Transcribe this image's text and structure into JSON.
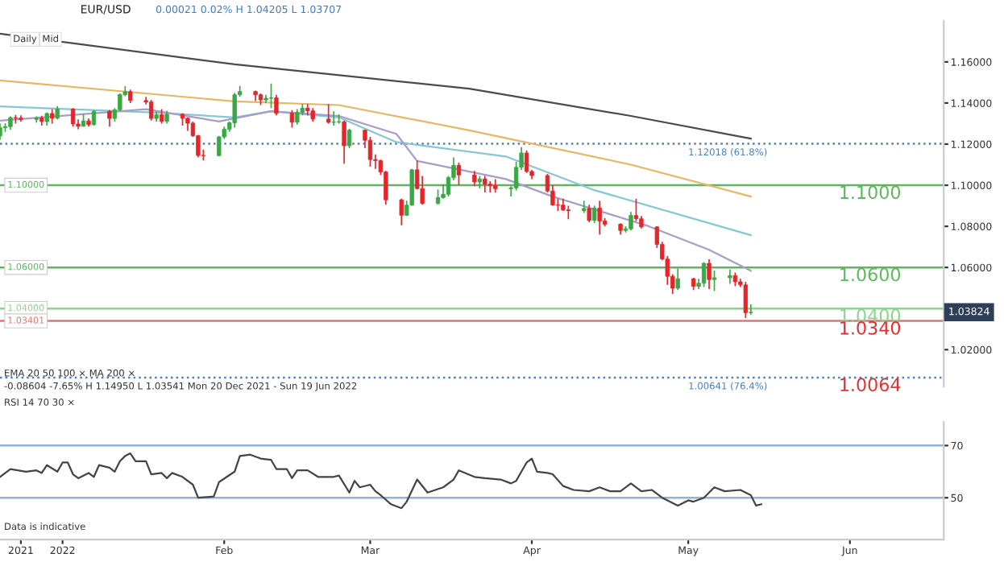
{
  "chart_data": [
    {
      "type": "candlestick",
      "title": "EUR/USD",
      "subtitle": "0.00021 0.02% H 1.04205 L 1.03707",
      "x": [
        "2021-12-20",
        "2021-12-21",
        "2021-12-22",
        "2021-12-23",
        "2021-12-24",
        "2021-12-27",
        "2021-12-28",
        "2021-12-29",
        "2021-12-30",
        "2021-12-31",
        "2022-01-03",
        "2022-01-04",
        "2022-01-05",
        "2022-01-06",
        "2022-01-07",
        "2022-01-10",
        "2022-01-11",
        "2022-01-12",
        "2022-01-13",
        "2022-01-14",
        "2022-01-17",
        "2022-01-18",
        "2022-01-19",
        "2022-01-20",
        "2022-01-21",
        "2022-01-24",
        "2022-01-25",
        "2022-01-26",
        "2022-01-27",
        "2022-01-28",
        "2022-01-31",
        "2022-02-01",
        "2022-02-02",
        "2022-02-03",
        "2022-02-04",
        "2022-02-07",
        "2022-02-08",
        "2022-02-09",
        "2022-02-10",
        "2022-02-11",
        "2022-02-14",
        "2022-02-15",
        "2022-02-16",
        "2022-02-17",
        "2022-02-18",
        "2022-02-21",
        "2022-02-22",
        "2022-02-23",
        "2022-02-24",
        "2022-02-25",
        "2022-02-28",
        "2022-03-01",
        "2022-03-02",
        "2022-03-03",
        "2022-03-04",
        "2022-03-07",
        "2022-03-08",
        "2022-03-09",
        "2022-03-10",
        "2022-03-11",
        "2022-03-14",
        "2022-03-15",
        "2022-03-16",
        "2022-03-17",
        "2022-03-18",
        "2022-03-21",
        "2022-03-22",
        "2022-03-23",
        "2022-03-24",
        "2022-03-25",
        "2022-03-28",
        "2022-03-29",
        "2022-03-30",
        "2022-03-31",
        "2022-04-01",
        "2022-04-04",
        "2022-04-05",
        "2022-04-06",
        "2022-04-07",
        "2022-04-08",
        "2022-04-11",
        "2022-04-12",
        "2022-04-13",
        "2022-04-14",
        "2022-04-15",
        "2022-04-18",
        "2022-04-19",
        "2022-04-20",
        "2022-04-21",
        "2022-04-22",
        "2022-04-25",
        "2022-04-26",
        "2022-04-27",
        "2022-04-28",
        "2022-04-29",
        "2022-05-02",
        "2022-05-03",
        "2022-05-04",
        "2022-05-05",
        "2022-05-06",
        "2022-05-09",
        "2022-05-10",
        "2022-05-11",
        "2022-05-12",
        "2022-05-13"
      ],
      "ohlc": [
        [
          1.124,
          1.13,
          1.1222,
          1.128
        ],
        [
          1.128,
          1.1302,
          1.126,
          1.1285
        ],
        [
          1.1285,
          1.1335,
          1.127,
          1.1329
        ],
        [
          1.1329,
          1.1342,
          1.13,
          1.1327
        ],
        [
          1.1327,
          1.134,
          1.131,
          1.132
        ],
        [
          1.132,
          1.1335,
          1.1305,
          1.1327
        ],
        [
          1.1327,
          1.1338,
          1.129,
          1.131
        ],
        [
          1.131,
          1.1355,
          1.129,
          1.1349
        ],
        [
          1.1349,
          1.137,
          1.13,
          1.1326
        ],
        [
          1.1326,
          1.1385,
          1.132,
          1.137
        ],
        [
          1.137,
          1.1375,
          1.1285,
          1.1298
        ],
        [
          1.1298,
          1.132,
          1.1272,
          1.1287
        ],
        [
          1.1287,
          1.1346,
          1.1285,
          1.1313
        ],
        [
          1.1313,
          1.1325,
          1.1285,
          1.1295
        ],
        [
          1.1295,
          1.1365,
          1.129,
          1.136
        ],
        [
          1.136,
          1.1365,
          1.1285,
          1.1325
        ],
        [
          1.1325,
          1.1375,
          1.131,
          1.1367
        ],
        [
          1.1367,
          1.1447,
          1.136,
          1.1441
        ],
        [
          1.1441,
          1.1482,
          1.1433,
          1.1455
        ],
        [
          1.1455,
          1.1465,
          1.14,
          1.1412
        ],
        [
          1.1412,
          1.143,
          1.1393,
          1.1405
        ],
        [
          1.1405,
          1.1415,
          1.1315,
          1.1325
        ],
        [
          1.1325,
          1.1358,
          1.131,
          1.1343
        ],
        [
          1.1343,
          1.137,
          1.13,
          1.1311
        ],
        [
          1.1311,
          1.1363,
          1.13,
          1.1345
        ],
        [
          1.1345,
          1.135,
          1.129,
          1.1326
        ],
        [
          1.1326,
          1.133,
          1.1265,
          1.1302
        ],
        [
          1.1302,
          1.131,
          1.1235,
          1.1241
        ],
        [
          1.1241,
          1.1245,
          1.1135,
          1.1145
        ],
        [
          1.1145,
          1.1174,
          1.1121,
          1.1144
        ],
        [
          1.1144,
          1.124,
          1.114,
          1.1235
        ],
        [
          1.1235,
          1.1285,
          1.1225,
          1.1272
        ],
        [
          1.1272,
          1.131,
          1.126,
          1.1304
        ],
        [
          1.1304,
          1.145,
          1.128,
          1.144
        ],
        [
          1.144,
          1.1483,
          1.143,
          1.1456
        ],
        [
          1.1456,
          1.146,
          1.141,
          1.144
        ],
        [
          1.144,
          1.1447,
          1.139,
          1.1415
        ],
        [
          1.1415,
          1.144,
          1.14,
          1.1423
        ],
        [
          1.1423,
          1.1495,
          1.1375,
          1.1425
        ],
        [
          1.1425,
          1.144,
          1.134,
          1.135
        ],
        [
          1.135,
          1.1365,
          1.128,
          1.1307
        ],
        [
          1.1307,
          1.137,
          1.1295,
          1.1355
        ],
        [
          1.1355,
          1.1395,
          1.134,
          1.1375
        ],
        [
          1.1375,
          1.1395,
          1.134,
          1.1362
        ],
        [
          1.1362,
          1.1375,
          1.131,
          1.1322
        ],
        [
          1.1322,
          1.1395,
          1.13,
          1.1306
        ],
        [
          1.1306,
          1.136,
          1.129,
          1.1307
        ],
        [
          1.1307,
          1.1345,
          1.13,
          1.1309
        ],
        [
          1.1309,
          1.1315,
          1.1105,
          1.1192
        ],
        [
          1.1192,
          1.1275,
          1.118,
          1.1268
        ],
        [
          1.1268,
          1.127,
          1.118,
          1.1219
        ],
        [
          1.1219,
          1.1235,
          1.109,
          1.1125
        ],
        [
          1.1125,
          1.115,
          1.108,
          1.112
        ],
        [
          1.112,
          1.1125,
          1.105,
          1.1065
        ],
        [
          1.1065,
          1.107,
          1.0905,
          1.0929
        ],
        [
          1.0929,
          1.0935,
          1.0805,
          1.0854
        ],
        [
          1.0854,
          1.0925,
          1.085,
          1.0903
        ],
        [
          1.0903,
          1.108,
          1.09,
          1.1075
        ],
        [
          1.1075,
          1.112,
          1.098,
          1.0984
        ],
        [
          1.0984,
          1.1045,
          1.0905,
          1.0912
        ],
        [
          1.0912,
          1.098,
          1.0905,
          1.094
        ],
        [
          1.094,
          1.1005,
          1.0935,
          1.0956
        ],
        [
          1.0956,
          1.1045,
          1.0945,
          1.1037
        ],
        [
          1.1037,
          1.1135,
          1.1025,
          1.1097
        ],
        [
          1.1097,
          1.111,
          1.1,
          1.105
        ],
        [
          1.105,
          1.107,
          1.0995,
          1.1016
        ],
        [
          1.1016,
          1.1045,
          1.0985,
          1.1031
        ],
        [
          1.1031,
          1.1045,
          1.0965,
          1.1005
        ],
        [
          1.1005,
          1.102,
          1.0965,
          1.0998
        ],
        [
          1.0998,
          1.103,
          1.0965,
          1.0983
        ],
        [
          1.0983,
          1.0995,
          1.0945,
          1.0987
        ],
        [
          1.0987,
          1.1115,
          1.0975,
          1.1087
        ],
        [
          1.1087,
          1.1185,
          1.1075,
          1.1157
        ],
        [
          1.1157,
          1.117,
          1.106,
          1.1067
        ],
        [
          1.1067,
          1.1075,
          1.103,
          1.1047
        ],
        [
          1.1047,
          1.1055,
          1.0965,
          1.0972
        ],
        [
          1.0972,
          1.1,
          1.09,
          1.0904
        ],
        [
          1.0904,
          1.0935,
          1.0875,
          1.0903
        ],
        [
          1.0903,
          1.0935,
          1.0875,
          1.088
        ],
        [
          1.088,
          1.09,
          1.0835,
          1.0876
        ],
        [
          1.0876,
          1.0925,
          1.0865,
          1.0887
        ],
        [
          1.0887,
          1.0905,
          1.082,
          1.0829
        ],
        [
          1.0829,
          1.09,
          1.0815,
          1.0889
        ],
        [
          1.0889,
          1.0925,
          1.076,
          1.0826
        ],
        [
          1.0826,
          1.084,
          1.08,
          1.081
        ],
        [
          1.081,
          1.0815,
          1.076,
          1.078
        ],
        [
          1.078,
          1.08,
          1.077,
          1.0788
        ],
        [
          1.0788,
          1.087,
          1.078,
          1.0853
        ],
        [
          1.0853,
          1.0935,
          1.0825,
          1.0837
        ],
        [
          1.0837,
          1.085,
          1.079,
          1.0797
        ],
        [
          1.0797,
          1.08,
          1.0695,
          1.0712
        ],
        [
          1.0712,
          1.0725,
          1.0635,
          1.0641
        ],
        [
          1.0641,
          1.0655,
          1.0515,
          1.0557
        ],
        [
          1.0557,
          1.0567,
          1.0471,
          1.0499
        ],
        [
          1.0499,
          1.0595,
          1.049,
          1.0545
        ],
        [
          1.0545,
          1.055,
          1.049,
          1.0508
        ],
        [
          1.0508,
          1.0545,
          1.0495,
          1.0523
        ],
        [
          1.0523,
          1.0625,
          1.0505,
          1.062
        ],
        [
          1.062,
          1.064,
          1.0495,
          1.0541
        ],
        [
          1.0541,
          1.0585,
          1.0485,
          1.055
        ],
        [
          1.055,
          1.059,
          1.052,
          1.056
        ],
        [
          1.056,
          1.0575,
          1.051,
          1.053
        ],
        [
          1.053,
          1.0545,
          1.0505,
          1.0515
        ],
        [
          1.0515,
          1.053,
          1.0354,
          1.038
        ],
        [
          1.03803,
          1.04205,
          1.03707,
          1.03824
        ]
      ],
      "series": [
        {
          "type": "line",
          "color": "#4a4a52",
          "x": [
            "2021-12-20",
            "2022-02-03",
            "2022-03-20",
            "2022-04-20",
            "2022-05-13"
          ],
          "values": [
            1.1737,
            1.1588,
            1.147,
            1.1337,
            1.1227
          ]
        },
        {
          "type": "line",
          "color": "#e6b765",
          "x": [
            "2021-12-20",
            "2022-02-03",
            "2022-02-23",
            "2022-03-20",
            "2022-04-20",
            "2022-05-13"
          ],
          "values": [
            1.151,
            1.1408,
            1.139,
            1.1267,
            1.11,
            1.0945
          ]
        },
        {
          "type": "line",
          "color": "#86c7d6",
          "x": [
            "2021-12-20",
            "2022-01-19",
            "2022-02-03",
            "2022-02-10",
            "2022-02-23",
            "2022-03-06",
            "2022-03-27",
            "2022-04-13",
            "2022-05-13"
          ],
          "values": [
            1.1384,
            1.1353,
            1.133,
            1.136,
            1.133,
            1.121,
            1.114,
            1.0976,
            1.0757
          ]
        },
        {
          "type": "line",
          "color": "#a89cc8",
          "x": [
            "2021-12-20",
            "2022-01-17",
            "2022-01-31",
            "2022-02-10",
            "2022-02-23",
            "2022-03-06",
            "2022-03-10",
            "2022-03-27",
            "2022-04-05",
            "2022-04-23",
            "2022-05-05",
            "2022-05-13"
          ],
          "values": [
            1.1314,
            1.137,
            1.131,
            1.136,
            1.1337,
            1.125,
            1.1118,
            1.103,
            1.0945,
            1.0804,
            1.0686,
            1.0584
          ]
        }
      ],
      "xlim": [
        "2021-12-20",
        "2022-06-19"
      ],
      "ylim": [
        1.002,
        1.18
      ],
      "yticks": [
        {
          "value": 1.02,
          "label": "1.02000"
        },
        {
          "value": 1.04,
          "label": null
        },
        {
          "value": 1.06,
          "label": "1.06000"
        },
        {
          "value": 1.08,
          "label": "1.08000"
        },
        {
          "value": 1.1,
          "label": "1.10000"
        },
        {
          "value": 1.12,
          "label": "1.12000"
        },
        {
          "value": 1.14,
          "label": "1.14000"
        },
        {
          "value": 1.16,
          "label": "1.16000"
        }
      ],
      "tick_labels": "y",
      "ref_lines": [
        {
          "axis": "y",
          "value": 1.1,
          "label": "1.1000",
          "color": "#5cb85c",
          "line_style": "solid"
        },
        {
          "axis": "y",
          "value": 1.06,
          "label": "1.0600",
          "color": "#5cb85c",
          "line_style": "solid"
        },
        {
          "axis": "y",
          "value": 1.04,
          "label": "1.0400",
          "color": "#8fd18f",
          "line_style": "solid"
        },
        {
          "axis": "y",
          "value": 1.034,
          "label": "1.0340",
          "color": "#e57373",
          "line_style": "solid"
        },
        {
          "axis": "y",
          "value": 1.12018,
          "label": null,
          "color": "#4a7fc1",
          "line_style": "dotted"
        },
        {
          "axis": "y",
          "value": 1.00641,
          "label": "1.0064",
          "color": "#4a7fc1",
          "line_style": "dotted"
        }
      ],
      "annotations": [
        "Daily",
        "Mid",
        "EMA 20 50 100 × MA 200 ×",
        "-0.08604 -7.65% H 1.14950 L 1.03541 Mon 20 Dec 2021 - Sun 19 Jun 2022",
        {
          "text": "1.10000",
          "x": "2021-12-21",
          "y": 1.1
        },
        {
          "text": "1.06000",
          "x": "2021-12-21",
          "y": 1.06
        },
        {
          "text": "1.04000",
          "x": "2021-12-21",
          "y": 1.04
        },
        {
          "text": "1.03401",
          "x": "2021-12-21",
          "y": 1.034
        },
        {
          "text": "1.12018 (61.8%)",
          "x": "2022-05-01",
          "y": 1.12018
        },
        {
          "text": "1.00641 (76.4%)",
          "x": "2022-05-01",
          "y": 1.00641
        },
        {
          "text": "1.03824",
          "x": "2022-06-19",
          "y": 1.03824
        }
      ]
    },
    {
      "type": "line",
      "series": [
        {
          "color": "#444444",
          "x": [
            "2021-12-20",
            "2021-12-22",
            "2021-12-25",
            "2021-12-27",
            "2021-12-28",
            "2021-12-29",
            "2021-12-31",
            "2022-01-01",
            "2022-01-02",
            "2022-01-03",
            "2022-01-04",
            "2022-01-06",
            "2022-01-07",
            "2022-01-08",
            "2022-01-10",
            "2022-01-11",
            "2022-01-12",
            "2022-01-13",
            "2022-01-14",
            "2022-01-15",
            "2022-01-17",
            "2022-01-18",
            "2022-01-20",
            "2022-01-21",
            "2022-01-22",
            "2022-01-24",
            "2022-01-26",
            "2022-01-27",
            "2022-01-30",
            "2022-01-31",
            "2022-02-03",
            "2022-02-04",
            "2022-02-06",
            "2022-02-08",
            "2022-02-10",
            "2022-02-11",
            "2022-02-13",
            "2022-02-14",
            "2022-02-15",
            "2022-02-17",
            "2022-02-19",
            "2022-02-22",
            "2022-02-23",
            "2022-02-25",
            "2022-02-26",
            "2022-02-27",
            "2022-03-01",
            "2022-03-02",
            "2022-03-03",
            "2022-03-05",
            "2022-03-07",
            "2022-03-08",
            "2022-03-10",
            "2022-03-12",
            "2022-03-15",
            "2022-03-17",
            "2022-03-18",
            "2022-03-21",
            "2022-03-23",
            "2022-03-26",
            "2022-03-28",
            "2022-03-29",
            "2022-03-30",
            "2022-03-31",
            "2022-04-01",
            "2022-04-02",
            "2022-04-04",
            "2022-04-05",
            "2022-04-07",
            "2022-04-09",
            "2022-04-12",
            "2022-04-14",
            "2022-04-16",
            "2022-04-18",
            "2022-04-20",
            "2022-04-22",
            "2022-04-24",
            "2022-04-26",
            "2022-04-29",
            "2022-05-01",
            "2022-05-02",
            "2022-05-04",
            "2022-05-06",
            "2022-05-08",
            "2022-05-11",
            "2022-05-13",
            "2022-05-14",
            "2022-05-15"
          ],
          "values": [
            58,
            61,
            60,
            60.5,
            59.5,
            62.5,
            60,
            63.5,
            63.5,
            59,
            57.5,
            59.5,
            58,
            62.5,
            61.5,
            60,
            64,
            66,
            67,
            64,
            64,
            59,
            59.5,
            57.5,
            59.5,
            58,
            55,
            50,
            50.5,
            56,
            60,
            66,
            66.5,
            65,
            64.5,
            61,
            61,
            57.5,
            60.5,
            60.5,
            58,
            58,
            58.5,
            52,
            56.5,
            54,
            55,
            52.5,
            51,
            47.5,
            46,
            48.5,
            57,
            52,
            54,
            57,
            60.5,
            58,
            57.5,
            57,
            55.5,
            56.5,
            60,
            63.5,
            65,
            60,
            59.5,
            59,
            54.5,
            53,
            52.5,
            54,
            52.5,
            52.5,
            55.5,
            52.5,
            53,
            50,
            47,
            49,
            48.5,
            50,
            54,
            52.5,
            53,
            51,
            47,
            47.5
          ]
        }
      ],
      "xlim": [
        "2021-12-20",
        "2022-06-19"
      ],
      "ylim": [
        34,
        79
      ],
      "xticks": [
        {
          "value": "2021-12-24",
          "label": "2021"
        },
        {
          "value": "2022-01-01",
          "label": "2022"
        },
        {
          "value": "2022-02-01",
          "label": "Feb"
        },
        {
          "value": "2022-03-01",
          "label": "Mar"
        },
        {
          "value": "2022-04-01",
          "label": "Apr"
        },
        {
          "value": "2022-05-01",
          "label": "May"
        },
        {
          "value": "2022-06-01",
          "label": "Jun"
        }
      ],
      "yticks": [
        50,
        70
      ],
      "ref_lines": [
        {
          "axis": "y",
          "value": 70,
          "label": null,
          "color": "#8fb3d9"
        },
        {
          "axis": "y",
          "value": 50,
          "label": null,
          "color": "#8fb3d9"
        }
      ],
      "annotations": [
        "RSI 14 70 30 ×",
        "Data is indicative"
      ]
    }
  ]
}
